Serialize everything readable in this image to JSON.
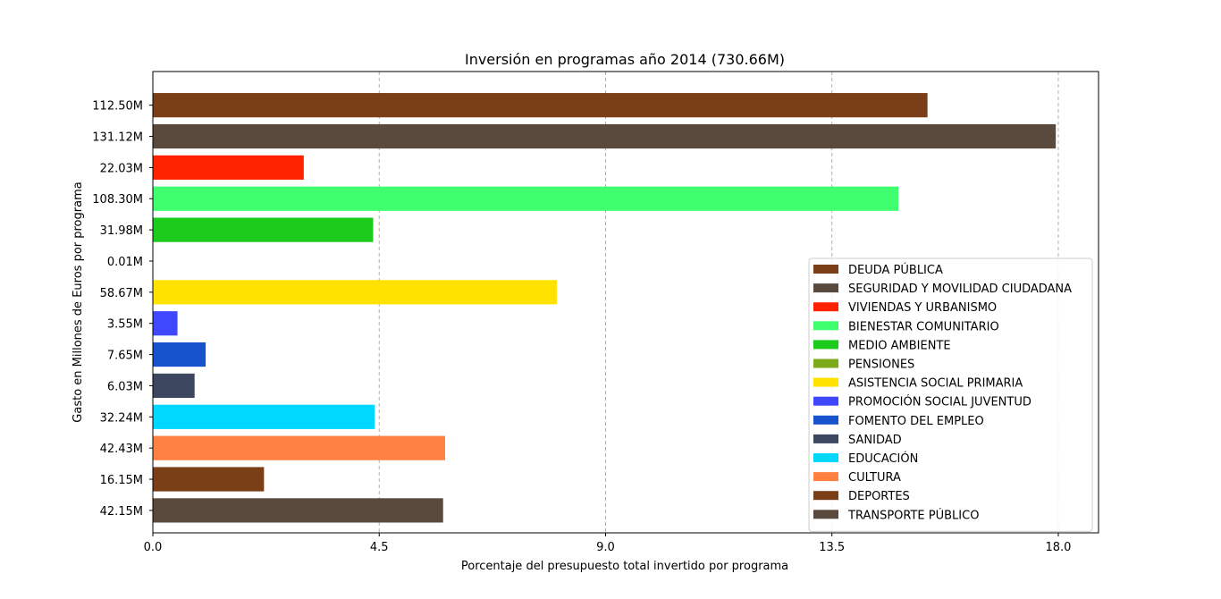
{
  "chart_data": {
    "type": "bar",
    "orientation": "horizontal",
    "title": "Inversión en programas año 2014 (730.66M)",
    "xlabel": "Porcentaje del presupuesto total invertido por programa",
    "ylabel": "Gasto en Millones de Euros por programa",
    "xlim": [
      0,
      18.8
    ],
    "xticks": [
      0.0,
      4.5,
      9.0,
      13.5,
      18.0
    ],
    "xtick_labels": [
      "0.0",
      "4.5",
      "9.0",
      "13.5",
      "18.0"
    ],
    "grid": "vertical dashed at x ticks",
    "legend_position": "lower-right",
    "bars": [
      {
        "label": "112.50M",
        "series": "DEUDA PÚBLICA",
        "value": 15.4,
        "color": "#7a3f17"
      },
      {
        "label": "131.12M",
        "series": "SEGURIDAD Y MOVILIDAD CIUDADANA",
        "value": 17.95,
        "color": "#5a4a3e"
      },
      {
        "label": "22.03M",
        "series": "VIVIENDAS Y URBANISMO",
        "value": 3.0,
        "color": "#ff2200"
      },
      {
        "label": "108.30M",
        "series": "BIENESTAR COMUNITARIO",
        "value": 14.82,
        "color": "#40ff6e"
      },
      {
        "label": "31.98M",
        "series": "MEDIO AMBIENTE",
        "value": 4.38,
        "color": "#1ccc1c"
      },
      {
        "label": "0.01M",
        "series": "PENSIONES",
        "value": 0.001,
        "color": "#7daa1a"
      },
      {
        "label": "58.67M",
        "series": "ASISTENCIA SOCIAL PRIMARIA",
        "value": 8.03,
        "color": "#ffe200"
      },
      {
        "label": "3.55M",
        "series": "PROMOCIÓN SOCIAL JUVENTUD",
        "value": 0.49,
        "color": "#4048ff"
      },
      {
        "label": "7.65M",
        "series": "FOMENTO DEL EMPLEO",
        "value": 1.05,
        "color": "#1753cc"
      },
      {
        "label": "6.03M",
        "series": "SANIDAD",
        "value": 0.83,
        "color": "#3d4860"
      },
      {
        "label": "32.24M",
        "series": "EDUCACIÓN",
        "value": 4.41,
        "color": "#00d8ff"
      },
      {
        "label": "42.43M",
        "series": "CULTURA",
        "value": 5.81,
        "color": "#ff8142"
      },
      {
        "label": "16.15M",
        "series": "DEPORTES",
        "value": 2.21,
        "color": "#7a3f17"
      },
      {
        "label": "42.15M",
        "series": "TRANSPORTE PÚBLICO",
        "value": 5.77,
        "color": "#5a4a3e"
      }
    ]
  }
}
